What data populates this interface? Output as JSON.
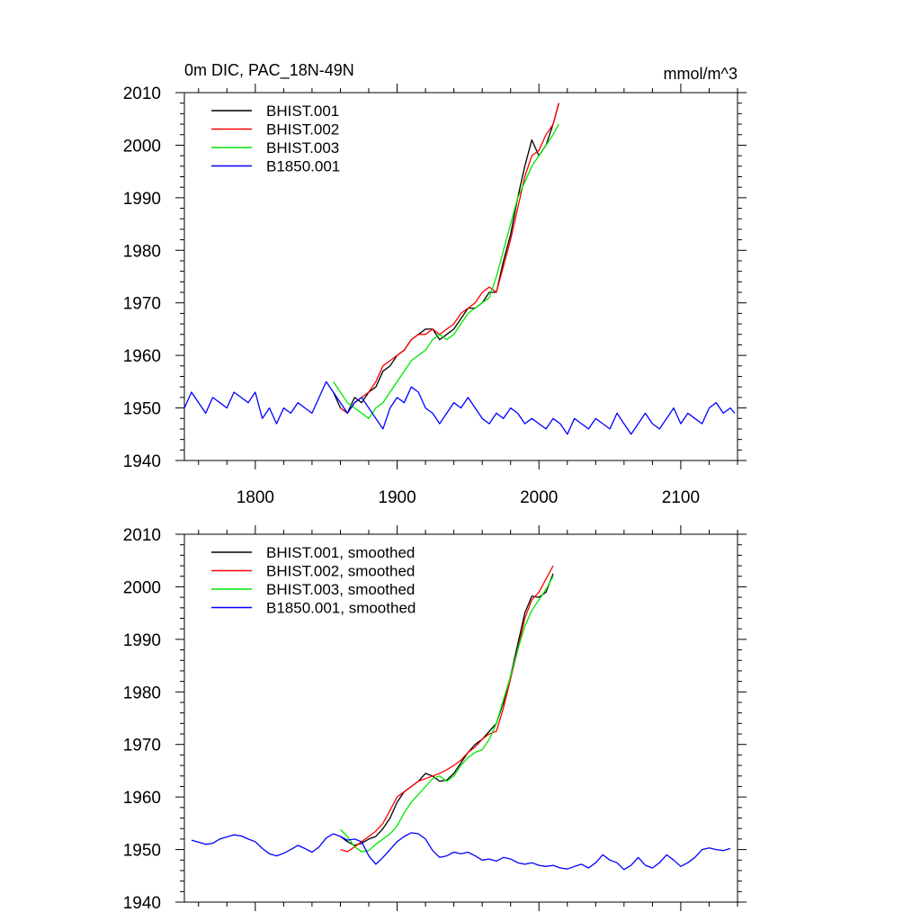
{
  "colors": {
    "BHIST.001": "#000000",
    "BHIST.002": "#ff0000",
    "BHIST.003": "#00e600",
    "B1850.001": "#0000ff"
  },
  "chart_data": [
    {
      "type": "line",
      "title": "0m DIC, PAC_18N-49N",
      "units": "mmol/m^3",
      "xlim": [
        1750,
        2140
      ],
      "ylim": [
        1940,
        2010
      ],
      "xticks": [
        1800,
        1900,
        2000,
        2100
      ],
      "xtick_labels": [
        "1800",
        "1900",
        "2000",
        "2100"
      ],
      "yticks": [
        1940,
        1950,
        1960,
        1970,
        1980,
        1990,
        2000,
        2010
      ],
      "ytick_labels": [
        "1940",
        "1950",
        "1960",
        "1970",
        "1980",
        "1990",
        "2000",
        "2010"
      ],
      "legend_position": "top-left",
      "smoothed": false,
      "series": [
        {
          "name": "BHIST.001",
          "label": "BHIST.001",
          "x": [
            1855,
            1860,
            1865,
            1870,
            1875,
            1880,
            1885,
            1890,
            1895,
            1900,
            1905,
            1910,
            1915,
            1920,
            1925,
            1930,
            1935,
            1940,
            1945,
            1950,
            1955,
            1960,
            1965,
            1970,
            1975,
            1980,
            1985,
            1990,
            1995,
            2000,
            2005,
            2010,
            2014
          ],
          "values": [
            1953,
            1950,
            1949,
            1952,
            1951,
            1953,
            1954,
            1957,
            1958,
            1960,
            1961,
            1963,
            1964,
            1965,
            1965,
            1963,
            1964,
            1965,
            1967,
            1969,
            1969,
            1970,
            1972,
            1972,
            1978,
            1983,
            1990,
            1996,
            2001,
            1998,
            2000,
            2004,
            2008
          ]
        },
        {
          "name": "BHIST.002",
          "label": "BHIST.002",
          "x": [
            1860,
            1865,
            1870,
            1875,
            1880,
            1885,
            1890,
            1895,
            1900,
            1905,
            1910,
            1915,
            1920,
            1925,
            1930,
            1935,
            1940,
            1945,
            1950,
            1955,
            1960,
            1965,
            1970,
            1975,
            1980,
            1985,
            1990,
            1995,
            2000,
            2005,
            2010,
            2014
          ],
          "values": [
            1950,
            1949,
            1951,
            1952,
            1953,
            1955,
            1958,
            1959,
            1960,
            1961,
            1963,
            1964,
            1964,
            1965,
            1964,
            1965,
            1966,
            1968,
            1969,
            1970,
            1972,
            1973,
            1972,
            1977,
            1982,
            1988,
            1994,
            1998,
            1999,
            2002,
            2004,
            2008
          ]
        },
        {
          "name": "BHIST.003",
          "label": "BHIST.003",
          "x": [
            1855,
            1860,
            1865,
            1870,
            1875,
            1880,
            1885,
            1890,
            1895,
            1900,
            1905,
            1910,
            1915,
            1920,
            1925,
            1930,
            1935,
            1940,
            1945,
            1950,
            1955,
            1960,
            1965,
            1970,
            1975,
            1980,
            1985,
            1990,
            1995,
            2000,
            2005,
            2010,
            2014
          ],
          "values": [
            1955,
            1953,
            1951,
            1950,
            1949,
            1948,
            1950,
            1951,
            1953,
            1955,
            1957,
            1959,
            1960,
            1961,
            1963,
            1964,
            1963,
            1964,
            1966,
            1968,
            1969,
            1970,
            1971,
            1975,
            1980,
            1985,
            1990,
            1993,
            1996,
            1998,
            2000,
            2002,
            2004
          ]
        },
        {
          "name": "B1850.001",
          "label": "B1850.001",
          "x": [
            1750,
            1755,
            1760,
            1765,
            1770,
            1775,
            1780,
            1785,
            1790,
            1795,
            1800,
            1805,
            1810,
            1815,
            1820,
            1825,
            1830,
            1835,
            1840,
            1845,
            1850,
            1855,
            1860,
            1865,
            1870,
            1875,
            1880,
            1885,
            1890,
            1895,
            1900,
            1905,
            1910,
            1915,
            1920,
            1925,
            1930,
            1935,
            1940,
            1945,
            1950,
            1955,
            1960,
            1965,
            1970,
            1975,
            1980,
            1985,
            1990,
            1995,
            2000,
            2005,
            2010,
            2015,
            2020,
            2025,
            2030,
            2035,
            2040,
            2045,
            2050,
            2055,
            2060,
            2065,
            2070,
            2075,
            2080,
            2085,
            2090,
            2095,
            2100,
            2105,
            2110,
            2115,
            2120,
            2125,
            2130,
            2135,
            2138
          ],
          "values": [
            1950,
            1953,
            1951,
            1949,
            1952,
            1951,
            1950,
            1953,
            1952,
            1951,
            1953,
            1948,
            1950,
            1947,
            1950,
            1949,
            1951,
            1950,
            1949,
            1952,
            1955,
            1953,
            1951,
            1949,
            1951,
            1952,
            1950,
            1948,
            1946,
            1950,
            1952,
            1951,
            1954,
            1953,
            1950,
            1949,
            1947,
            1949,
            1951,
            1950,
            1952,
            1950,
            1948,
            1947,
            1949,
            1948,
            1950,
            1949,
            1947,
            1948,
            1947,
            1946,
            1948,
            1947,
            1945,
            1948,
            1947,
            1946,
            1948,
            1947,
            1946,
            1949,
            1947,
            1945,
            1947,
            1949,
            1947,
            1946,
            1948,
            1950,
            1947,
            1949,
            1948,
            1947,
            1950,
            1951,
            1949,
            1950,
            1949
          ]
        }
      ]
    },
    {
      "type": "line",
      "title": "",
      "units": "",
      "xlim": [
        1750,
        2140
      ],
      "ylim": [
        1940,
        2010
      ],
      "xticks": [
        1800,
        1900,
        2000,
        2100
      ],
      "xtick_labels": [],
      "yticks": [
        1940,
        1950,
        1960,
        1970,
        1980,
        1990,
        2000,
        2010
      ],
      "ytick_labels": [
        "1940",
        "1950",
        "1960",
        "1970",
        "1980",
        "1990",
        "2000",
        "2010"
      ],
      "legend_position": "top-left",
      "smoothed": true,
      "series": [
        {
          "name": "BHIST.001",
          "label": "BHIST.001, smoothed",
          "x": [
            1860,
            1865,
            1870,
            1875,
            1880,
            1885,
            1890,
            1895,
            1900,
            1905,
            1910,
            1915,
            1920,
            1925,
            1930,
            1935,
            1940,
            1945,
            1950,
            1955,
            1960,
            1965,
            1970,
            1975,
            1980,
            1985,
            1990,
            1995,
            2000,
            2005,
            2010
          ],
          "values": [
            1952.5,
            1951.5,
            1950.8,
            1951.2,
            1952.0,
            1952.5,
            1954.0,
            1956.0,
            1959.0,
            1961.0,
            1962.0,
            1963.0,
            1964.5,
            1964.0,
            1963.0,
            1963.2,
            1964.5,
            1966.5,
            1968.5,
            1970.0,
            1971.0,
            1972.5,
            1974.0,
            1978.0,
            1983.0,
            1989.0,
            1995.0,
            1998.2,
            1998.0,
            1999.0,
            2002.5
          ]
        },
        {
          "name": "BHIST.002",
          "label": "BHIST.002, smoothed",
          "x": [
            1860,
            1865,
            1870,
            1875,
            1880,
            1885,
            1890,
            1895,
            1900,
            1905,
            1910,
            1915,
            1920,
            1925,
            1930,
            1935,
            1940,
            1945,
            1950,
            1955,
            1960,
            1965,
            1970,
            1975,
            1980,
            1985,
            1990,
            1995,
            2000,
            2005,
            2010
          ],
          "values": [
            1950.0,
            1949.6,
            1950.5,
            1951.5,
            1952.5,
            1953.5,
            1955.0,
            1957.5,
            1960.0,
            1961.0,
            1962.0,
            1963.0,
            1963.5,
            1964.0,
            1964.5,
            1965.2,
            1966.0,
            1967.0,
            1968.5,
            1969.5,
            1971.0,
            1972.0,
            1972.5,
            1977.0,
            1982.5,
            1988.0,
            1994.0,
            1997.5,
            1999.0,
            2001.5,
            2004.0
          ]
        },
        {
          "name": "BHIST.003",
          "label": "BHIST.003, smoothed",
          "x": [
            1860,
            1865,
            1870,
            1875,
            1880,
            1885,
            1890,
            1895,
            1900,
            1905,
            1910,
            1915,
            1920,
            1925,
            1930,
            1935,
            1940,
            1945,
            1950,
            1955,
            1960,
            1965,
            1970,
            1975,
            1980,
            1985,
            1990,
            1995,
            2000,
            2005,
            2010
          ],
          "values": [
            1953.8,
            1952.5,
            1950.5,
            1949.6,
            1949.8,
            1951.0,
            1952.0,
            1953.0,
            1954.5,
            1957.0,
            1959.0,
            1960.5,
            1962.0,
            1963.5,
            1964.0,
            1963.0,
            1964.0,
            1966.0,
            1967.5,
            1968.5,
            1969.0,
            1971.0,
            1974.0,
            1978.5,
            1983.0,
            1988.0,
            1992.5,
            1995.5,
            1997.5,
            1999.5,
            2002.0
          ]
        },
        {
          "name": "B1850.001",
          "label": "B1850.001, smoothed",
          "x": [
            1755,
            1760,
            1765,
            1770,
            1775,
            1780,
            1785,
            1790,
            1795,
            1800,
            1805,
            1810,
            1815,
            1820,
            1825,
            1830,
            1835,
            1840,
            1845,
            1850,
            1855,
            1860,
            1865,
            1870,
            1875,
            1880,
            1885,
            1890,
            1895,
            1900,
            1905,
            1910,
            1915,
            1920,
            1925,
            1930,
            1935,
            1940,
            1945,
            1950,
            1955,
            1960,
            1965,
            1970,
            1975,
            1980,
            1985,
            1990,
            1995,
            2000,
            2005,
            2010,
            2015,
            2020,
            2025,
            2030,
            2035,
            2040,
            2045,
            2050,
            2055,
            2060,
            2065,
            2070,
            2075,
            2080,
            2085,
            2090,
            2095,
            2100,
            2105,
            2110,
            2115,
            2120,
            2125,
            2130,
            2135
          ],
          "values": [
            1951.8,
            1951.4,
            1951.0,
            1951.2,
            1952.0,
            1952.4,
            1952.8,
            1952.6,
            1952.0,
            1951.5,
            1950.2,
            1949.2,
            1948.8,
            1949.3,
            1950.0,
            1950.8,
            1950.2,
            1949.5,
            1950.5,
            1952.2,
            1953.0,
            1952.5,
            1951.8,
            1952.0,
            1951.5,
            1948.8,
            1947.2,
            1948.5,
            1950.0,
            1951.5,
            1952.5,
            1953.2,
            1953.0,
            1952.0,
            1949.8,
            1948.5,
            1948.8,
            1949.5,
            1949.2,
            1949.5,
            1948.8,
            1948.0,
            1948.2,
            1947.8,
            1948.5,
            1948.2,
            1947.5,
            1947.2,
            1947.5,
            1947.0,
            1946.8,
            1947.0,
            1946.5,
            1946.3,
            1946.8,
            1947.2,
            1946.5,
            1947.5,
            1949.0,
            1948.0,
            1947.5,
            1946.2,
            1947.0,
            1948.5,
            1947.0,
            1946.5,
            1947.5,
            1949.0,
            1948.0,
            1946.8,
            1947.5,
            1948.5,
            1950.0,
            1950.3,
            1950.0,
            1949.8,
            1950.2
          ]
        }
      ]
    }
  ]
}
